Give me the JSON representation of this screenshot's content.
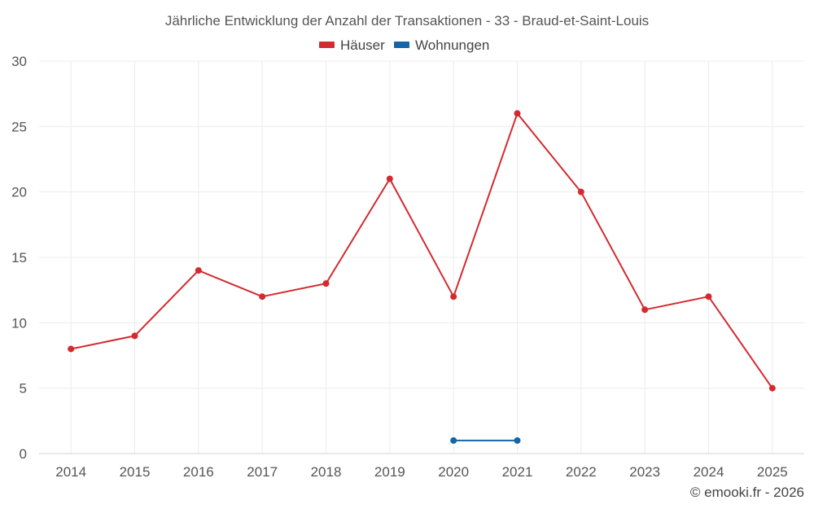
{
  "chart_data": {
    "type": "line",
    "title": "Jährliche Entwicklung der Anzahl der Transaktionen - 33 - Braud-et-Saint-Louis",
    "categories": [
      "2014",
      "2015",
      "2016",
      "2017",
      "2018",
      "2019",
      "2020",
      "2021",
      "2022",
      "2023",
      "2024",
      "2025"
    ],
    "y_ticks": [
      "0",
      "5",
      "10",
      "15",
      "20",
      "25",
      "30"
    ],
    "ylim": [
      0,
      30
    ],
    "xlabel": "",
    "ylabel": "",
    "grid": true,
    "legend_position": "top-center",
    "series": [
      {
        "name": "Häuser",
        "color": "#d32a2f",
        "values": [
          8,
          9,
          14,
          12,
          13,
          21,
          12,
          26,
          20,
          11,
          12,
          5
        ]
      },
      {
        "name": "Wohnungen",
        "color": "#1565a8",
        "values": [
          null,
          null,
          null,
          null,
          null,
          null,
          1,
          1,
          null,
          null,
          null,
          null
        ]
      }
    ],
    "credit": "© emooki.fr - 2026"
  }
}
